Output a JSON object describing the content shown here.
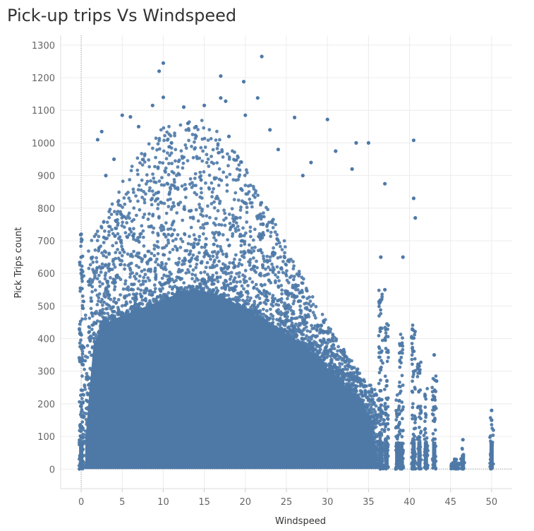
{
  "chart_data": {
    "type": "scatter",
    "title": "Pick-up trips Vs Windspeed",
    "xlabel": "Windspeed",
    "ylabel": "Pick Trips count",
    "xlim": [
      -2.5,
      52.5
    ],
    "ylim": [
      -60,
      1330
    ],
    "x_ticks": [
      "0",
      "5",
      "10",
      "15",
      "20",
      "25",
      "30",
      "35",
      "40",
      "45",
      "50"
    ],
    "y_ticks": [
      "0",
      "100",
      "200",
      "300",
      "400",
      "500",
      "600",
      "700",
      "800",
      "900",
      "1000",
      "1100",
      "1200",
      "1300"
    ],
    "grid": true,
    "point_color": "#4e79a7",
    "series": [
      {
        "x": [
          9.5,
          10,
          22,
          17,
          19.8,
          21.5,
          15,
          10,
          17,
          17.6,
          12.5,
          20,
          30,
          26,
          6,
          5,
          8.7,
          40.5,
          2,
          2.5,
          35,
          33.5,
          37,
          40.5,
          40.7,
          39.2,
          36.5,
          37,
          43,
          43.3,
          50,
          50,
          46.5,
          45.5,
          0,
          0,
          0,
          7,
          11,
          14,
          23,
          28,
          31,
          33,
          13,
          18,
          24,
          27,
          3,
          4
        ],
        "y": [
          1220,
          1245,
          1265,
          1205,
          1188,
          1138,
          1115,
          1140,
          1138,
          1128,
          1110,
          1085,
          1072,
          1078,
          1080,
          1085,
          1115,
          1008,
          1010,
          1035,
          1000,
          1000,
          875,
          830,
          770,
          650,
          650,
          550,
          350,
          270,
          180,
          150,
          90,
          30,
          720,
          650,
          600,
          1050,
          1000,
          1050,
          1040,
          940,
          975,
          920,
          1060,
          1020,
          980,
          900,
          900,
          950
        ]
      }
    ]
  }
}
